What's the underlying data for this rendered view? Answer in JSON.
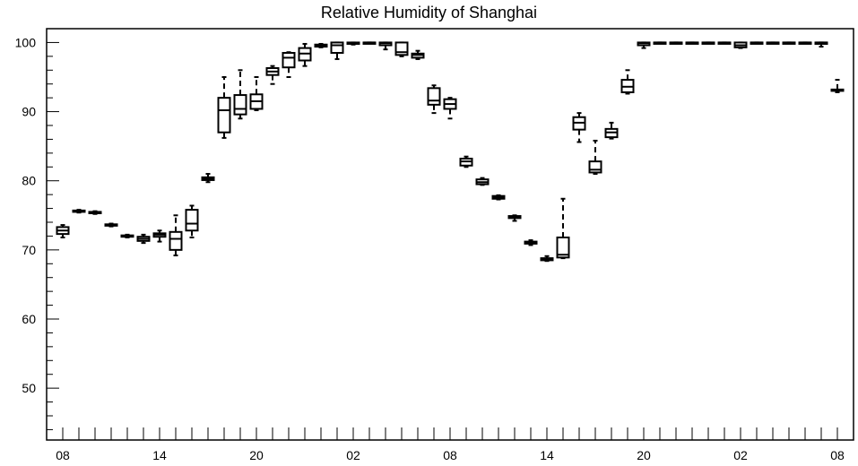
{
  "chart_data": {
    "type": "boxplot",
    "title": "Relative Humidity of Shanghai",
    "ylim": [
      42.5,
      102
    ],
    "y_ticks": [
      50,
      60,
      70,
      80,
      90,
      100
    ],
    "x_ticks": [
      {
        "hour": 0,
        "label": "08"
      },
      {
        "hour": 6,
        "label": "14"
      },
      {
        "hour": 12,
        "label": "20"
      },
      {
        "hour": 18,
        "label": "02"
      },
      {
        "hour": 24,
        "label": "08"
      },
      {
        "hour": 30,
        "label": "14"
      },
      {
        "hour": 36,
        "label": "20"
      },
      {
        "hour": 42,
        "label": "02"
      },
      {
        "hour": 48,
        "label": "08"
      }
    ],
    "xlim": [
      -1,
      49
    ],
    "grid": false,
    "boxes": [
      {
        "hour": 0,
        "wlo": 71.8,
        "q1": 72.3,
        "med": 72.8,
        "q3": 73.3,
        "whi": 73.6
      },
      {
        "hour": 1,
        "wlo": 75.4,
        "q1": 75.5,
        "med": 75.6,
        "q3": 75.7,
        "whi": 75.8
      },
      {
        "hour": 2,
        "wlo": 75.2,
        "q1": 75.3,
        "med": 75.4,
        "q3": 75.5,
        "whi": 75.6
      },
      {
        "hour": 3,
        "wlo": 73.4,
        "q1": 73.5,
        "med": 73.6,
        "q3": 73.7,
        "whi": 73.8
      },
      {
        "hour": 4,
        "wlo": 71.8,
        "q1": 71.9,
        "med": 72.0,
        "q3": 72.1,
        "whi": 72.2
      },
      {
        "hour": 5,
        "wlo": 71.0,
        "q1": 71.3,
        "med": 71.6,
        "q3": 71.9,
        "whi": 72.2
      },
      {
        "hour": 6,
        "wlo": 71.2,
        "q1": 71.9,
        "med": 72.2,
        "q3": 72.4,
        "whi": 72.8
      },
      {
        "hour": 7,
        "wlo": 69.2,
        "q1": 70.0,
        "med": 71.6,
        "q3": 72.6,
        "whi": 75.0
      },
      {
        "hour": 8,
        "wlo": 71.8,
        "q1": 72.8,
        "med": 73.8,
        "q3": 75.8,
        "whi": 76.4
      },
      {
        "hour": 9,
        "wlo": 79.8,
        "q1": 80.1,
        "med": 80.3,
        "q3": 80.5,
        "whi": 81.0
      },
      {
        "hour": 10,
        "wlo": 86.2,
        "q1": 87.0,
        "med": 90.2,
        "q3": 92.0,
        "whi": 95.0
      },
      {
        "hour": 11,
        "wlo": 89.0,
        "q1": 89.6,
        "med": 90.4,
        "q3": 92.4,
        "whi": 96.0
      },
      {
        "hour": 12,
        "wlo": 90.2,
        "q1": 90.4,
        "med": 91.5,
        "q3": 92.5,
        "whi": 95.0
      },
      {
        "hour": 13,
        "wlo": 94.0,
        "q1": 95.3,
        "med": 95.8,
        "q3": 96.3,
        "whi": 96.6
      },
      {
        "hour": 14,
        "wlo": 95.0,
        "q1": 96.4,
        "med": 97.8,
        "q3": 98.5,
        "whi": 98.6
      },
      {
        "hour": 15,
        "wlo": 96.6,
        "q1": 97.4,
        "med": 98.4,
        "q3": 99.2,
        "whi": 99.8
      },
      {
        "hour": 16,
        "wlo": 99.3,
        "q1": 99.4,
        "med": 99.6,
        "q3": 99.7,
        "whi": 99.8
      },
      {
        "hour": 17,
        "wlo": 97.6,
        "q1": 98.5,
        "med": 99.6,
        "q3": 100.0,
        "whi": 100.0
      },
      {
        "hour": 18,
        "wlo": 99.7,
        "q1": 99.8,
        "med": 99.9,
        "q3": 100.0,
        "whi": 100.0
      },
      {
        "hour": 19,
        "wlo": 99.9,
        "q1": 99.95,
        "med": 100.0,
        "q3": 100.0,
        "whi": 100.0
      },
      {
        "hour": 20,
        "wlo": 99.0,
        "q1": 99.6,
        "med": 99.9,
        "q3": 100.0,
        "whi": 100.0
      },
      {
        "hour": 21,
        "wlo": 98.0,
        "q1": 98.2,
        "med": 98.6,
        "q3": 100.0,
        "whi": 100.0
      },
      {
        "hour": 22,
        "wlo": 97.6,
        "q1": 97.8,
        "med": 98.2,
        "q3": 98.4,
        "whi": 98.8
      },
      {
        "hour": 23,
        "wlo": 89.8,
        "q1": 91.0,
        "med": 91.6,
        "q3": 93.4,
        "whi": 93.8
      },
      {
        "hour": 24,
        "wlo": 89.0,
        "q1": 90.4,
        "med": 91.1,
        "q3": 91.8,
        "whi": 92.0
      },
      {
        "hour": 25,
        "wlo": 82.0,
        "q1": 82.2,
        "med": 82.8,
        "q3": 83.2,
        "whi": 83.5
      },
      {
        "hour": 26,
        "wlo": 79.4,
        "q1": 79.5,
        "med": 79.8,
        "q3": 80.2,
        "whi": 80.4
      },
      {
        "hour": 27,
        "wlo": 77.3,
        "q1": 77.4,
        "med": 77.6,
        "q3": 77.8,
        "whi": 77.9
      },
      {
        "hour": 28,
        "wlo": 74.2,
        "q1": 74.6,
        "med": 74.8,
        "q3": 74.9,
        "whi": 75.0
      },
      {
        "hour": 29,
        "wlo": 70.7,
        "q1": 70.9,
        "med": 71.1,
        "q3": 71.2,
        "whi": 71.4
      },
      {
        "hour": 30,
        "wlo": 68.4,
        "q1": 68.5,
        "med": 68.6,
        "q3": 68.8,
        "whi": 69.1
      },
      {
        "hour": 31,
        "wlo": 68.8,
        "q1": 68.9,
        "med": 69.3,
        "q3": 71.8,
        "whi": 77.4
      },
      {
        "hour": 32,
        "wlo": 85.6,
        "q1": 87.4,
        "med": 88.4,
        "q3": 89.2,
        "whi": 89.8
      },
      {
        "hour": 33,
        "wlo": 81.0,
        "q1": 81.2,
        "med": 81.6,
        "q3": 82.8,
        "whi": 85.8
      },
      {
        "hour": 34,
        "wlo": 86.1,
        "q1": 86.3,
        "med": 87.0,
        "q3": 87.5,
        "whi": 88.4
      },
      {
        "hour": 35,
        "wlo": 92.6,
        "q1": 92.8,
        "med": 93.6,
        "q3": 94.6,
        "whi": 96.0
      },
      {
        "hour": 36,
        "wlo": 99.2,
        "q1": 99.6,
        "med": 99.9,
        "q3": 100.0,
        "whi": 100.0
      },
      {
        "hour": 37,
        "wlo": 99.95,
        "q1": 100.0,
        "med": 100.0,
        "q3": 100.0,
        "whi": 100.0
      },
      {
        "hour": 38,
        "wlo": 99.95,
        "q1": 100.0,
        "med": 100.0,
        "q3": 100.0,
        "whi": 100.0
      },
      {
        "hour": 39,
        "wlo": 99.95,
        "q1": 100.0,
        "med": 100.0,
        "q3": 100.0,
        "whi": 100.0
      },
      {
        "hour": 40,
        "wlo": 99.95,
        "q1": 100.0,
        "med": 100.0,
        "q3": 100.0,
        "whi": 100.0
      },
      {
        "hour": 41,
        "wlo": 99.95,
        "q1": 100.0,
        "med": 100.0,
        "q3": 100.0,
        "whi": 100.0
      },
      {
        "hour": 42,
        "wlo": 99.2,
        "q1": 99.3,
        "med": 99.6,
        "q3": 100.0,
        "whi": 100.0
      },
      {
        "hour": 43,
        "wlo": 99.95,
        "q1": 100.0,
        "med": 100.0,
        "q3": 100.0,
        "whi": 100.0
      },
      {
        "hour": 44,
        "wlo": 99.95,
        "q1": 100.0,
        "med": 100.0,
        "q3": 100.0,
        "whi": 100.0
      },
      {
        "hour": 45,
        "wlo": 99.95,
        "q1": 100.0,
        "med": 100.0,
        "q3": 100.0,
        "whi": 100.0
      },
      {
        "hour": 46,
        "wlo": 99.95,
        "q1": 100.0,
        "med": 100.0,
        "q3": 100.0,
        "whi": 100.0
      },
      {
        "hour": 47,
        "wlo": 99.4,
        "q1": 99.8,
        "med": 100.0,
        "q3": 100.0,
        "whi": 100.0
      },
      {
        "hour": 48,
        "wlo": 92.8,
        "q1": 93.0,
        "med": 93.1,
        "q3": 93.2,
        "whi": 94.6
      }
    ]
  }
}
